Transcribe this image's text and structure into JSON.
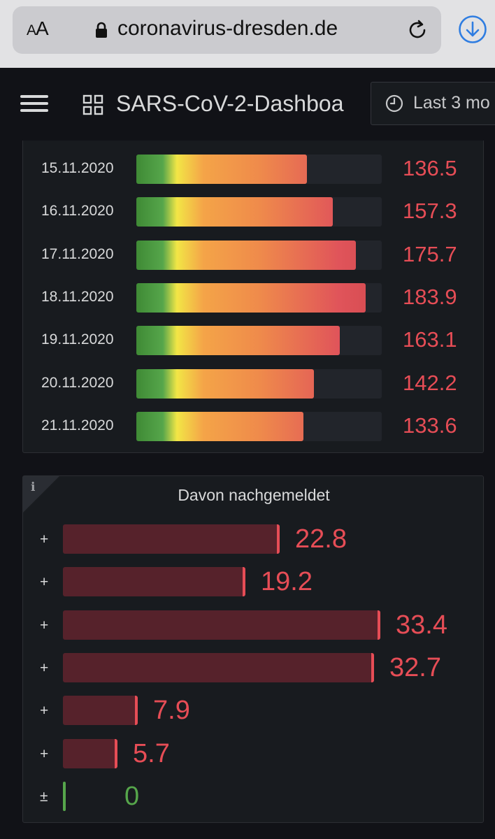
{
  "browser": {
    "text_size_label": "AA",
    "url": "coronavirus-dresden.de"
  },
  "nav": {
    "dashboard_title": "SARS-CoV-2-Dashboa",
    "time_range": "Last 3 mo"
  },
  "incidence_panel": {
    "rows": [
      {
        "date": "15.11.2020",
        "value": "136.5",
        "fill_fraction": 0.695
      },
      {
        "date": "16.11.2020",
        "value": "157.3",
        "fill_fraction": 0.8
      },
      {
        "date": "17.11.2020",
        "value": "175.7",
        "fill_fraction": 0.895
      },
      {
        "date": "18.11.2020",
        "value": "183.9",
        "fill_fraction": 0.935
      },
      {
        "date": "19.11.2020",
        "value": "163.1",
        "fill_fraction": 0.83
      },
      {
        "date": "20.11.2020",
        "value": "142.2",
        "fill_fraction": 0.723
      },
      {
        "date": "21.11.2020",
        "value": "133.6",
        "fill_fraction": 0.68
      }
    ],
    "colors": {
      "low": "#56a64b",
      "mid": "#f2e646",
      "orange": "#ef8b4b",
      "high": "#e0545a"
    }
  },
  "reported_panel": {
    "info_icon": "i",
    "title": "Davon nachgemeldet",
    "rows": [
      {
        "sign": "+",
        "value": "22.8",
        "amount": 22.8
      },
      {
        "sign": "+",
        "value": "19.2",
        "amount": 19.2
      },
      {
        "sign": "+",
        "value": "33.4",
        "amount": 33.4
      },
      {
        "sign": "+",
        "value": "32.7",
        "amount": 32.7
      },
      {
        "sign": "+",
        "value": "7.9",
        "amount": 7.9
      },
      {
        "sign": "+",
        "value": "5.7",
        "amount": 5.7
      },
      {
        "sign": "±",
        "value": "0",
        "amount": 0
      }
    ],
    "colors": {
      "bar": "#56222b",
      "accent": "#e64d56",
      "zero": "#56a64b"
    }
  }
}
